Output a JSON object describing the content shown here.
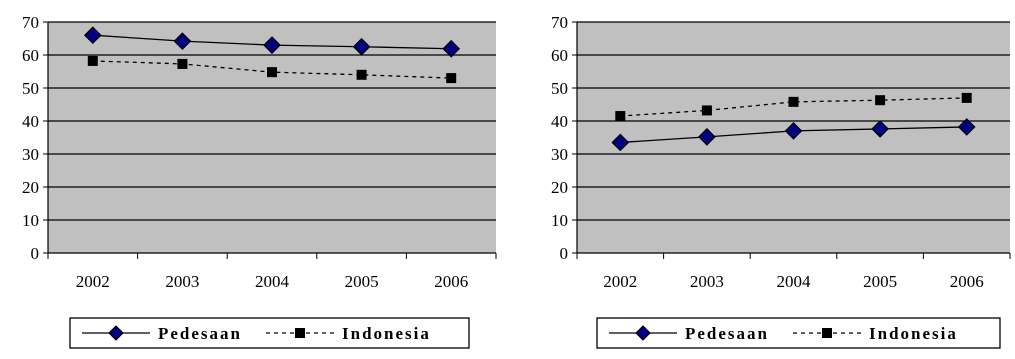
{
  "colors": {
    "plot_background": "#c0c0c0",
    "pedesaan_marker": "#000080",
    "indonesia_marker": "#000000",
    "gridline": "#000000"
  },
  "chart_data": [
    {
      "type": "line",
      "x": [
        "2002",
        "2003",
        "2004",
        "2005",
        "2006"
      ],
      "ylim": [
        0,
        70
      ],
      "yticks": [
        "0",
        "10",
        "20",
        "30",
        "40",
        "50",
        "60",
        "70"
      ],
      "grid": true,
      "legend_position": "bottom",
      "series": [
        {
          "name": "Pedesaan",
          "values": [
            66.0,
            64.2,
            63.0,
            62.5,
            61.9
          ],
          "marker": "diamond",
          "line": "solid"
        },
        {
          "name": "Indonesia",
          "values": [
            58.2,
            57.3,
            54.8,
            54.0,
            53.0
          ],
          "marker": "square",
          "line": "dashed"
        }
      ]
    },
    {
      "type": "line",
      "x": [
        "2002",
        "2003",
        "2004",
        "2005",
        "2006"
      ],
      "ylim": [
        0,
        70
      ],
      "yticks": [
        "0",
        "10",
        "20",
        "30",
        "40",
        "50",
        "60",
        "70"
      ],
      "grid": true,
      "legend_position": "bottom",
      "series": [
        {
          "name": "Pedesaan",
          "values": [
            33.5,
            35.2,
            37.0,
            37.6,
            38.2
          ],
          "marker": "diamond",
          "line": "solid"
        },
        {
          "name": "Indonesia",
          "values": [
            41.5,
            43.2,
            45.8,
            46.3,
            47.0
          ],
          "marker": "square",
          "line": "dashed"
        }
      ]
    }
  ]
}
